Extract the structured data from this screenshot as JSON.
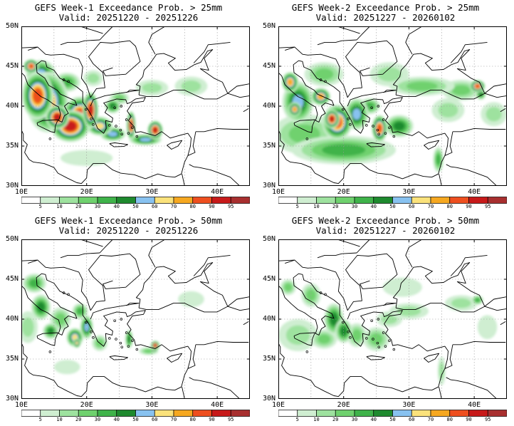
{
  "palette": [
    "#ffffff",
    "#cfeed1",
    "#9ee29f",
    "#6fd16e",
    "#3fb34a",
    "#1e8a2e",
    "#88c2f0",
    "#fbe27b",
    "#f6a820",
    "#ee4f1f",
    "#c71a1a",
    "#a82f2f"
  ],
  "legend_labels": [
    "5",
    "10",
    "20",
    "30",
    "40",
    "50",
    "60",
    "70",
    "80",
    "90",
    "95"
  ],
  "axes": {
    "lat_labels": [
      "50N",
      "45N",
      "40N",
      "35N",
      "30N"
    ],
    "lon_labels": [
      "10E",
      "20E",
      "30E",
      "40E"
    ]
  },
  "panels": [
    {
      "title": "GEFS Week-1 Exceedance Prob. > 25mm",
      "valid": "Valid: 20251220 - 20251226",
      "blobs": [
        [
          14,
          40.5,
          3.2,
          3.8,
          8
        ],
        [
          12.5,
          41.3,
          2.4,
          3.0,
          9
        ],
        [
          17.5,
          37.5,
          3.0,
          2.0,
          10
        ],
        [
          15.5,
          38.6,
          1.8,
          1.5,
          10
        ],
        [
          19,
          39,
          2.6,
          2.2,
          9
        ],
        [
          13,
          44,
          2.3,
          1.8,
          6
        ],
        [
          11.5,
          45,
          1.2,
          0.9,
          9
        ],
        [
          20.6,
          39.5,
          1.2,
          2.3,
          10
        ],
        [
          22,
          37.5,
          2.0,
          1.2,
          7
        ],
        [
          24,
          36.5,
          2.0,
          0.9,
          6
        ],
        [
          26.8,
          37.6,
          0.7,
          1.8,
          10
        ],
        [
          30.5,
          37,
          1.2,
          1.2,
          10
        ],
        [
          29,
          35.8,
          2.5,
          0.7,
          6
        ],
        [
          24,
          40,
          1.2,
          0.9,
          5
        ],
        [
          25,
          41,
          1.5,
          0.8,
          3
        ],
        [
          36,
          42.5,
          2.5,
          1.2,
          2
        ],
        [
          30,
          42.3,
          2.5,
          1.0,
          2
        ],
        [
          17,
          43,
          2.0,
          1.2,
          4
        ],
        [
          21,
          43.5,
          1.5,
          1.0,
          2
        ],
        [
          20,
          33.5,
          4.0,
          1.0,
          1
        ]
      ]
    },
    {
      "title": "GEFS Week-2 Exceedance Prob. > 25mm",
      "valid": "Valid: 20251227 - 20260102",
      "blobs": [
        [
          13,
          40.5,
          2.4,
          2.6,
          6
        ],
        [
          11.8,
          43,
          1.3,
          1.3,
          8
        ],
        [
          12.5,
          39.6,
          1.0,
          0.9,
          8
        ],
        [
          16.5,
          41.2,
          1.5,
          1.1,
          8
        ],
        [
          19,
          38,
          2.3,
          2.2,
          9
        ],
        [
          18.2,
          38.4,
          1.2,
          1.2,
          10
        ],
        [
          22,
          39,
          1.8,
          2.0,
          6
        ],
        [
          25.5,
          37.2,
          1.2,
          1.7,
          9
        ],
        [
          24,
          40,
          1.6,
          1.0,
          4
        ],
        [
          28.5,
          37.5,
          2.2,
          1.4,
          5
        ],
        [
          14,
          36.5,
          5.0,
          2.5,
          3
        ],
        [
          20,
          34.5,
          8.0,
          1.8,
          4
        ],
        [
          34.5,
          33.3,
          0.8,
          1.6,
          4
        ],
        [
          38,
          42,
          3.0,
          1.3,
          3
        ],
        [
          40.5,
          42.5,
          1.2,
          0.8,
          9
        ],
        [
          41,
          41.5,
          0.8,
          0.7,
          5
        ],
        [
          43,
          39,
          2.0,
          1.5,
          2
        ],
        [
          17,
          44,
          3.0,
          1.5,
          3
        ],
        [
          27,
          44,
          3.0,
          1.5,
          2
        ],
        [
          32,
          42.5,
          5.0,
          1.2,
          3
        ],
        [
          36,
          39.5,
          2.5,
          1.5,
          2
        ]
      ]
    },
    {
      "title": "GEFS Week-1 Exceedance Prob. > 50mm",
      "valid": "Valid: 20251220 - 20251226",
      "blobs": [
        [
          12,
          44.5,
          1.8,
          1.2,
          4
        ],
        [
          13,
          41.5,
          1.5,
          1.6,
          5
        ],
        [
          14.5,
          38.5,
          1.2,
          1.0,
          5
        ],
        [
          16,
          40,
          1.6,
          1.5,
          3
        ],
        [
          18.2,
          37.7,
          1.3,
          1.2,
          7
        ],
        [
          18.5,
          37,
          0.6,
          0.6,
          7
        ],
        [
          20,
          39,
          1.0,
          1.5,
          6
        ],
        [
          19,
          41,
          1.2,
          1.0,
          4
        ],
        [
          22,
          37,
          1.2,
          1.0,
          3
        ],
        [
          26.5,
          37.5,
          0.6,
          1.2,
          5
        ],
        [
          30.5,
          36.7,
          0.7,
          0.6,
          10
        ],
        [
          30.4,
          36.3,
          0.5,
          0.5,
          9
        ],
        [
          29.5,
          36,
          1.5,
          0.5,
          3
        ],
        [
          11,
          39,
          1.5,
          2.0,
          2
        ],
        [
          36,
          42.5,
          2.0,
          1.0,
          1
        ],
        [
          17,
          34,
          2.0,
          0.9,
          1
        ]
      ]
    },
    {
      "title": "GEFS Week-2 Exceedance Prob. > 50mm",
      "valid": "Valid: 20251227 - 20260102",
      "blobs": [
        [
          11.5,
          44,
          1.2,
          1.0,
          3
        ],
        [
          15,
          43,
          1.5,
          1.5,
          3
        ],
        [
          18.5,
          40,
          1.5,
          2.0,
          5
        ],
        [
          20,
          38.5,
          1.3,
          1.5,
          5
        ],
        [
          17,
          37.5,
          2.0,
          1.2,
          3
        ],
        [
          22,
          38,
          1.5,
          1.5,
          3
        ],
        [
          25,
          37.5,
          2.0,
          1.5,
          3
        ],
        [
          27,
          40,
          2.0,
          1.0,
          2
        ],
        [
          30,
          41,
          3.0,
          1.0,
          2
        ],
        [
          38,
          42,
          2.5,
          1.0,
          2
        ],
        [
          40.5,
          42.4,
          0.9,
          0.6,
          4
        ],
        [
          35,
          33.5,
          0.6,
          1.8,
          2
        ],
        [
          13,
          38,
          3.0,
          2.0,
          2
        ],
        [
          29,
          44,
          3.0,
          1.2,
          1
        ],
        [
          42,
          39,
          1.5,
          1.5,
          1
        ]
      ]
    }
  ]
}
